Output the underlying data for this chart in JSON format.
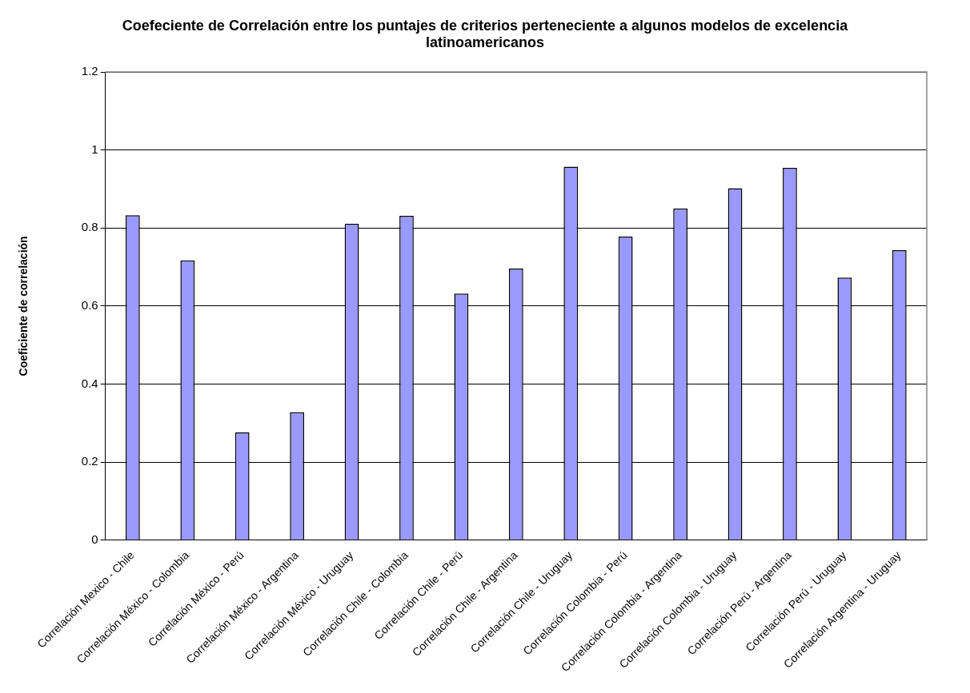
{
  "chart_data": {
    "type": "bar",
    "title": "Coefeciente de Correlación entre los puntajes de criterios perteneciente a algunos modelos de excelencia latinoamericanos",
    "ylabel": "Coeficiente de correlación",
    "categories": [
      "Correlación Mexico - Chile",
      "Correlación México - Colombia",
      "Correlación México - Perú",
      "Correlación México - Argentina",
      "Correlación México - Uruguay",
      "Correlación Chile - Colombia",
      "Correlación Chile - Perú",
      "Correlación Chile - Argentina",
      "Correlación Chile - Uruguay",
      "Correlación Colombia - Perú",
      "Correlación Colombia - Argentina",
      "Correlación Colombia - Uruguay",
      "Correlación Perú - Argentina",
      "Correlación Perú - Uruguay",
      "Correlación Argentina - Uruguay"
    ],
    "values": [
      0.833,
      0.717,
      0.276,
      0.328,
      0.811,
      0.831,
      0.632,
      0.696,
      0.957,
      0.778,
      0.85,
      0.902,
      0.954,
      0.673,
      0.743
    ],
    "color": "#9999ff",
    "ylim": [
      0,
      1.2
    ],
    "yticks": [
      0,
      0.2,
      0.4,
      0.6,
      0.8,
      1,
      1.2
    ],
    "grid": "y",
    "legend": false
  }
}
